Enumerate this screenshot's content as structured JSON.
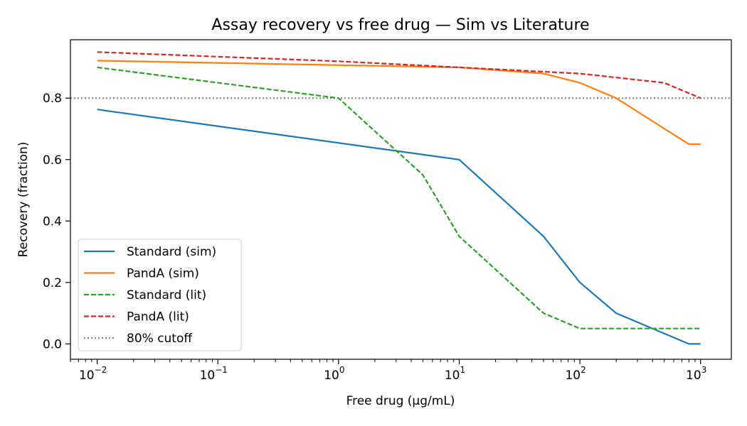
{
  "chart_data": {
    "type": "line",
    "title": "Assay recovery vs free drug — Sim vs Literature",
    "xlabel": "Free drug (µg/mL)",
    "ylabel": "Recovery (fraction)",
    "xscale": "log",
    "xlim": [
      0.006,
      1800
    ],
    "ylim": [
      -0.05,
      0.99
    ],
    "grid": false,
    "legend_loc": "lower-left",
    "x_ticks": [
      {
        "value": 0.01,
        "base": "10",
        "exp": "−2"
      },
      {
        "value": 0.1,
        "base": "10",
        "exp": "−1"
      },
      {
        "value": 1,
        "base": "10",
        "exp": "0"
      },
      {
        "value": 10,
        "base": "10",
        "exp": "1"
      },
      {
        "value": 100,
        "base": "10",
        "exp": "2"
      },
      {
        "value": 1000,
        "base": "10",
        "exp": "3"
      }
    ],
    "y_ticks": [
      {
        "value": 0.0,
        "label": "0.0"
      },
      {
        "value": 0.2,
        "label": "0.2"
      },
      {
        "value": 0.4,
        "label": "0.4"
      },
      {
        "value": 0.6,
        "label": "0.6"
      },
      {
        "value": 0.8,
        "label": "0.8"
      }
    ],
    "series": [
      {
        "name": "Standard (sim)",
        "color": "#1f77b4",
        "style": "solid",
        "x": [
          0.01,
          10,
          50,
          100,
          200,
          800,
          1000
        ],
        "y": [
          0.763,
          0.6,
          0.35,
          0.2,
          0.1,
          0.0,
          0.0
        ]
      },
      {
        "name": "PandA (sim)",
        "color": "#ff7f0e",
        "style": "solid",
        "x": [
          0.01,
          10,
          50,
          100,
          200,
          800,
          1000
        ],
        "y": [
          0.922,
          0.9,
          0.88,
          0.85,
          0.8,
          0.65,
          0.65
        ]
      },
      {
        "name": "Standard (lit)",
        "color": "#2ca02c",
        "style": "dashed",
        "x": [
          0.01,
          1,
          5,
          10,
          50,
          100,
          1000
        ],
        "y": [
          0.9,
          0.8,
          0.55,
          0.35,
          0.1,
          0.05,
          0.05
        ]
      },
      {
        "name": "PandA (lit)",
        "color": "#d62728",
        "style": "dashed",
        "x": [
          0.01,
          1,
          10,
          100,
          500,
          1000
        ],
        "y": [
          0.95,
          0.92,
          0.9,
          0.88,
          0.85,
          0.8
        ]
      }
    ],
    "reference_lines": [
      {
        "name": "80% cutoff",
        "y": 0.8,
        "color": "#808080",
        "style": "dotted"
      }
    ]
  }
}
